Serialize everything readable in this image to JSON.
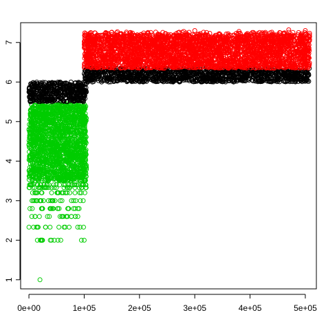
{
  "chart_data": {
    "type": "scatter",
    "title": "",
    "xlabel": "",
    "ylabel": "",
    "xlim": [
      -15000,
      520000
    ],
    "ylim": [
      0.77,
      7.5
    ],
    "x_ticks": [
      0,
      100000,
      200000,
      300000,
      400000,
      500000
    ],
    "x_tick_labels": [
      "0e+00",
      "1e+05",
      "2e+05",
      "3e+05",
      "4e+05",
      "5e+05"
    ],
    "y_ticks": [
      1,
      2,
      3,
      4,
      5,
      6,
      7
    ],
    "y_tick_labels": [
      "1",
      "2",
      "3",
      "4",
      "5",
      "6",
      "7"
    ],
    "grid": false,
    "series": [
      {
        "color": "#00cc00",
        "x_range": [
          0,
          104000
        ],
        "dense_y_range": [
          3.5,
          5.45
        ],
        "discrete_levels": [
          2.0,
          2.33,
          2.6,
          2.8,
          3.0,
          3.2,
          3.33,
          3.4
        ],
        "outliers": [
          {
            "x": 20000,
            "y": 1.0
          },
          {
            "x": 95000,
            "y": 2.0
          },
          {
            "x": 100000,
            "y": 2.0
          }
        ]
      },
      {
        "color": "#000000",
        "x_range": [
          0,
          104000
        ],
        "dense_y_range": [
          5.5,
          6.0
        ]
      },
      {
        "color": "#000000",
        "x_range": [
          100000,
          508000
        ],
        "dense_y_range": [
          6.0,
          6.35
        ]
      },
      {
        "color": "#ff0000",
        "x_range": [
          100000,
          508000
        ],
        "dense_y_range": [
          6.35,
          7.2
        ],
        "top_points": [
          {
            "x": 160000,
            "y": 7.27
          },
          {
            "x": 280000,
            "y": 7.28
          },
          {
            "x": 300000,
            "y": 7.3
          },
          {
            "x": 380000,
            "y": 7.28
          },
          {
            "x": 470000,
            "y": 7.32
          },
          {
            "x": 500000,
            "y": 7.3
          }
        ]
      }
    ]
  }
}
